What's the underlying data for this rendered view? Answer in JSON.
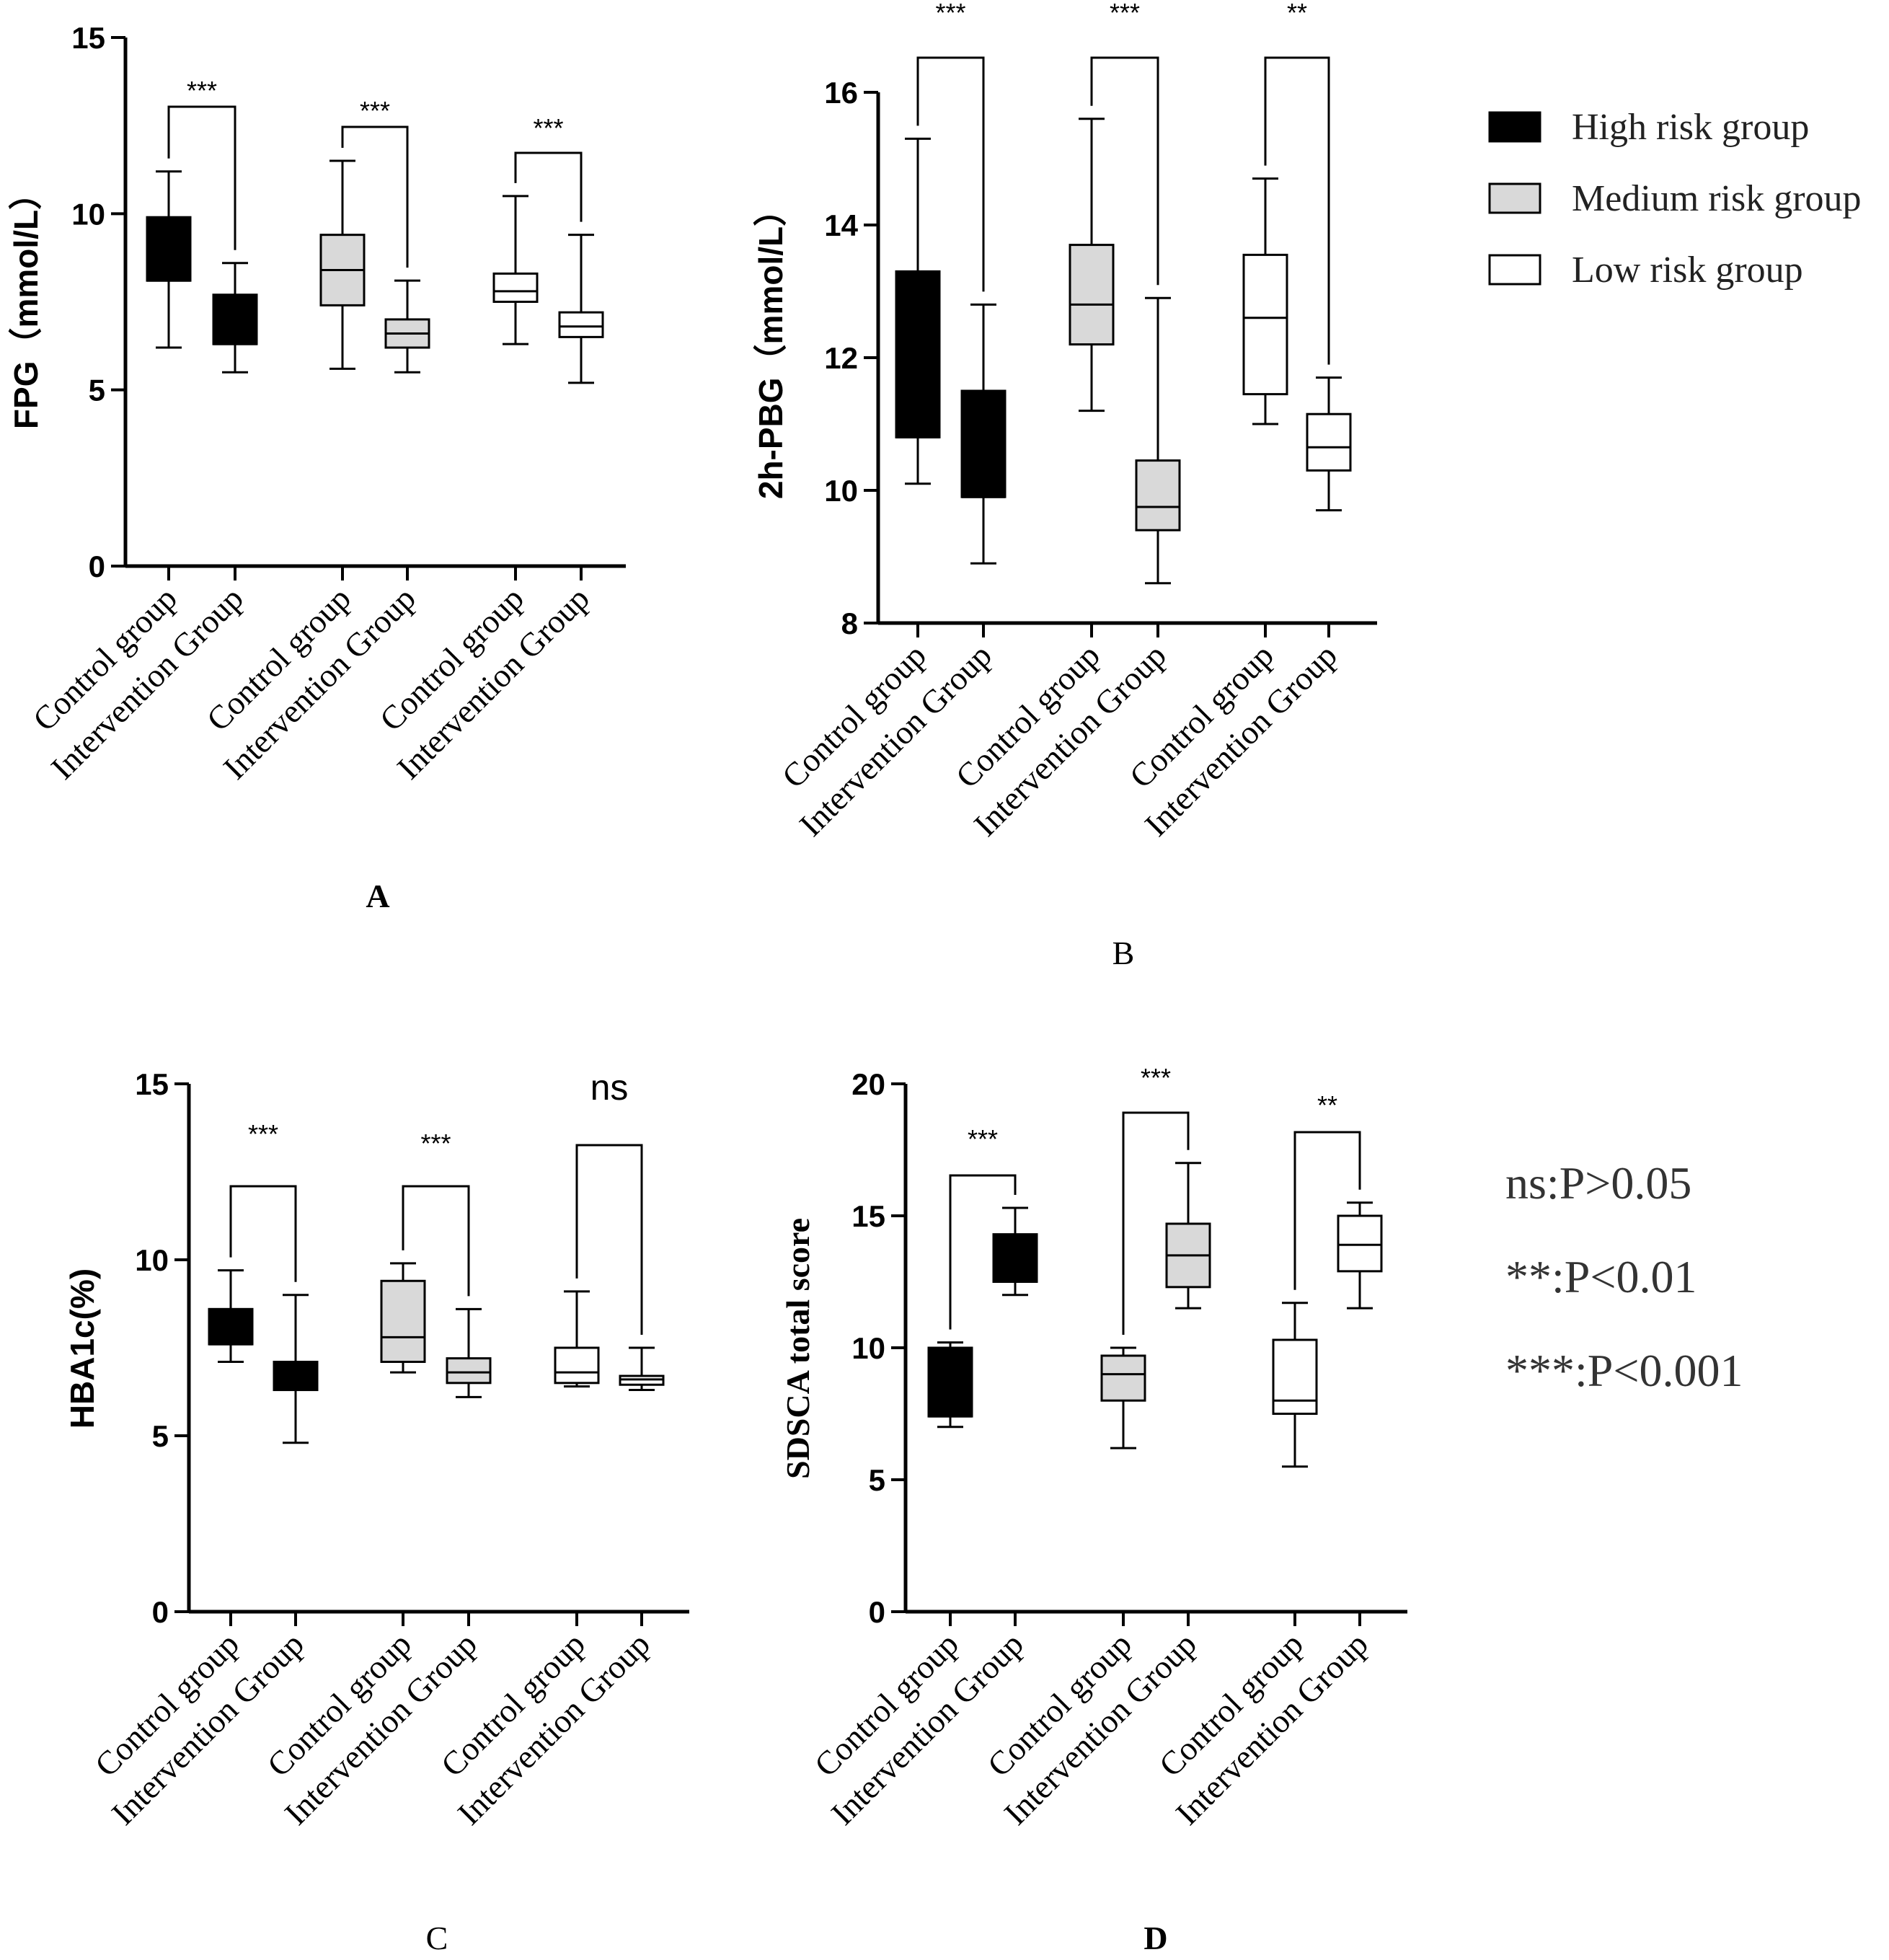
{
  "legend": [
    {
      "label": "High risk group",
      "fill": "#000000"
    },
    {
      "label": "Medium risk group",
      "fill": "#d9d9d9"
    },
    {
      "label": "Low risk group",
      "fill": "#ffffff"
    }
  ],
  "significance_notes": [
    "ns:P>0.05",
    "**:P<0.01",
    "***:P<0.001"
  ],
  "chart_data": [
    {
      "type": "box",
      "panel": "A",
      "ylabel": "FPG（mmol/L）",
      "ylim": [
        0,
        15
      ],
      "yticks": [
        0,
        5,
        10,
        15
      ],
      "categories": [
        "Control group",
        "Intervention Group",
        "Control group",
        "Intervention Group",
        "Control group",
        "Intervention Group"
      ],
      "boxes": [
        {
          "series": "High risk group",
          "min": 6.2,
          "q1": 8.1,
          "median": 8.1,
          "q3": 9.9,
          "max": 11.2
        },
        {
          "series": "High risk group",
          "min": 5.5,
          "q1": 6.3,
          "median": 6.3,
          "q3": 7.7,
          "max": 8.6
        },
        {
          "series": "Medium risk group",
          "min": 5.6,
          "q1": 7.4,
          "median": 8.4,
          "q3": 9.4,
          "max": 11.5
        },
        {
          "series": "Medium risk group",
          "min": 5.5,
          "q1": 6.2,
          "median": 6.6,
          "q3": 7.0,
          "max": 8.1
        },
        {
          "series": "Low risk group",
          "min": 6.3,
          "q1": 7.5,
          "median": 7.8,
          "q3": 8.3,
          "max": 10.5
        },
        {
          "series": "Low risk group",
          "min": 5.2,
          "q1": 6.5,
          "median": 6.8,
          "q3": 7.2,
          "max": 9.4
        }
      ],
      "comparisons": [
        "***",
        "***",
        "***"
      ]
    },
    {
      "type": "box",
      "panel": "B",
      "ylabel": "2h-PBG（mmol/L）",
      "ylim": [
        8,
        16
      ],
      "yticks": [
        8,
        10,
        12,
        14,
        16
      ],
      "categories": [
        "Control group",
        "Intervention Group",
        "Control group",
        "Intervention Group",
        "Control group",
        "Intervention Group"
      ],
      "boxes": [
        {
          "series": "High risk group",
          "min": 10.1,
          "q1": 10.8,
          "median": 10.8,
          "q3": 13.3,
          "max": 15.3
        },
        {
          "series": "High risk group",
          "min": 8.9,
          "q1": 9.9,
          "median": 9.9,
          "q3": 11.5,
          "max": 12.8
        },
        {
          "series": "Medium risk group",
          "min": 11.2,
          "q1": 12.2,
          "median": 12.8,
          "q3": 13.7,
          "max": 15.6
        },
        {
          "series": "Medium risk group",
          "min": 8.6,
          "q1": 9.4,
          "median": 9.75,
          "q3": 10.45,
          "max": 12.9
        },
        {
          "series": "Low risk group",
          "min": 11.0,
          "q1": 11.45,
          "median": 12.6,
          "q3": 13.55,
          "max": 14.7
        },
        {
          "series": "Low risk group",
          "min": 9.7,
          "q1": 10.3,
          "median": 10.65,
          "q3": 11.15,
          "max": 11.7
        }
      ],
      "comparisons": [
        "***",
        "***",
        "**"
      ]
    },
    {
      "type": "box",
      "panel": "C",
      "ylabel": "HBA1c(%)",
      "ylim": [
        0,
        15
      ],
      "yticks": [
        0,
        5,
        10,
        15
      ],
      "categories": [
        "Control group",
        "Intervention Group",
        "Control group",
        "Intervention Group",
        "Control group",
        "Intervention Group"
      ],
      "boxes": [
        {
          "series": "High risk group",
          "min": 7.1,
          "q1": 7.6,
          "median": 7.6,
          "q3": 8.6,
          "max": 9.7
        },
        {
          "series": "High risk group",
          "min": 4.8,
          "q1": 6.3,
          "median": 6.3,
          "q3": 7.1,
          "max": 9.0
        },
        {
          "series": "Medium risk group",
          "min": 6.8,
          "q1": 7.1,
          "median": 7.8,
          "q3": 9.4,
          "max": 9.9
        },
        {
          "series": "Medium risk group",
          "min": 6.1,
          "q1": 6.5,
          "median": 6.8,
          "q3": 7.2,
          "max": 8.6
        },
        {
          "series": "Low risk group",
          "min": 6.4,
          "q1": 6.5,
          "median": 6.8,
          "q3": 7.5,
          "max": 9.1
        },
        {
          "series": "Low risk group",
          "min": 6.3,
          "q1": 6.45,
          "median": 6.6,
          "q3": 6.7,
          "max": 7.5
        }
      ],
      "comparisons": [
        "***",
        "***",
        "ns"
      ]
    },
    {
      "type": "box",
      "panel": "D",
      "ylabel": "SDSCA total score",
      "ylim": [
        0,
        20
      ],
      "yticks": [
        0,
        5,
        10,
        15,
        20
      ],
      "categories": [
        "Control group",
        "Intervention Group",
        "Control group",
        "Intervention Group",
        "Control group",
        "Intervention Group"
      ],
      "boxes": [
        {
          "series": "High risk group",
          "min": 7.0,
          "q1": 7.4,
          "median": 7.4,
          "q3": 10.0,
          "max": 10.2
        },
        {
          "series": "High risk group",
          "min": 12.0,
          "q1": 12.5,
          "median": 12.5,
          "q3": 14.3,
          "max": 15.3
        },
        {
          "series": "Medium risk group",
          "min": 6.2,
          "q1": 8.0,
          "median": 9.0,
          "q3": 9.7,
          "max": 10.0
        },
        {
          "series": "Medium risk group",
          "min": 11.5,
          "q1": 12.3,
          "median": 13.5,
          "q3": 14.7,
          "max": 17.0
        },
        {
          "series": "Low risk group",
          "min": 5.5,
          "q1": 7.5,
          "median": 8.0,
          "q3": 10.3,
          "max": 11.7
        },
        {
          "series": "Low risk group",
          "min": 11.5,
          "q1": 12.9,
          "median": 13.9,
          "q3": 15.0,
          "max": 15.5
        }
      ],
      "comparisons": [
        "***",
        "***",
        "**"
      ]
    }
  ]
}
